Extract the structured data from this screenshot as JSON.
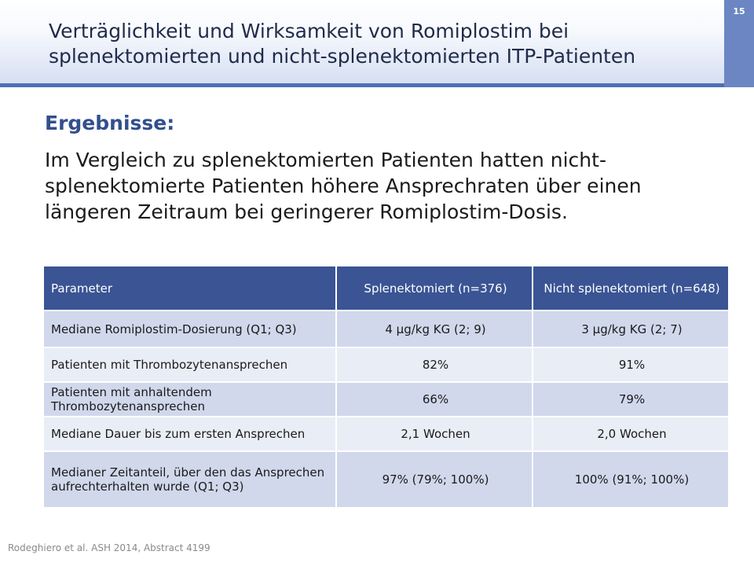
{
  "slide": {
    "page_number": "15",
    "title": "Verträglichkeit und Wirksamkeit von Romiplostim bei splenektomierten und nicht-splenektomierten ITP-Patienten",
    "section_heading": "Ergebnisse:",
    "summary": "Im Vergleich zu splenektomierten Patienten hatten nicht-splenektomierte Patienten höhere Ansprechraten über einen längeren Zeitraum bei geringerer Romiplostim-Dosis.",
    "footnote": "Rodeghiero et al. ASH 2014, Abstract 4199"
  },
  "table": {
    "headers": {
      "parameter": "Parameter",
      "splenectomized": "Splenektomiert (n=376)",
      "non_splenectomized": "Nicht splenektomiert (n=648)"
    },
    "rows": [
      {
        "parameter": "Mediane Romiplostim-Dosierung (Q1; Q3)",
        "splenectomized": "4 µg/kg KG (2; 9)",
        "non_splenectomized": "3 µg/kg KG (2; 7)"
      },
      {
        "parameter": "Patienten mit Thrombozytenansprechen",
        "splenectomized": "82%",
        "non_splenectomized": "91%"
      },
      {
        "parameter": "Patienten mit anhaltendem Thrombozytenansprechen",
        "splenectomized": "66%",
        "non_splenectomized": "79%"
      },
      {
        "parameter": "Mediane Dauer bis zum ersten Ansprechen",
        "splenectomized": "2,1 Wochen",
        "non_splenectomized": "2,0 Wochen"
      },
      {
        "parameter": "Medianer Zeitanteil, über den das Ansprechen aufrechterhalten wurde (Q1; Q3)",
        "splenectomized": "97% (79%; 100%)",
        "non_splenectomized": "100% (91%; 100%)"
      }
    ]
  }
}
